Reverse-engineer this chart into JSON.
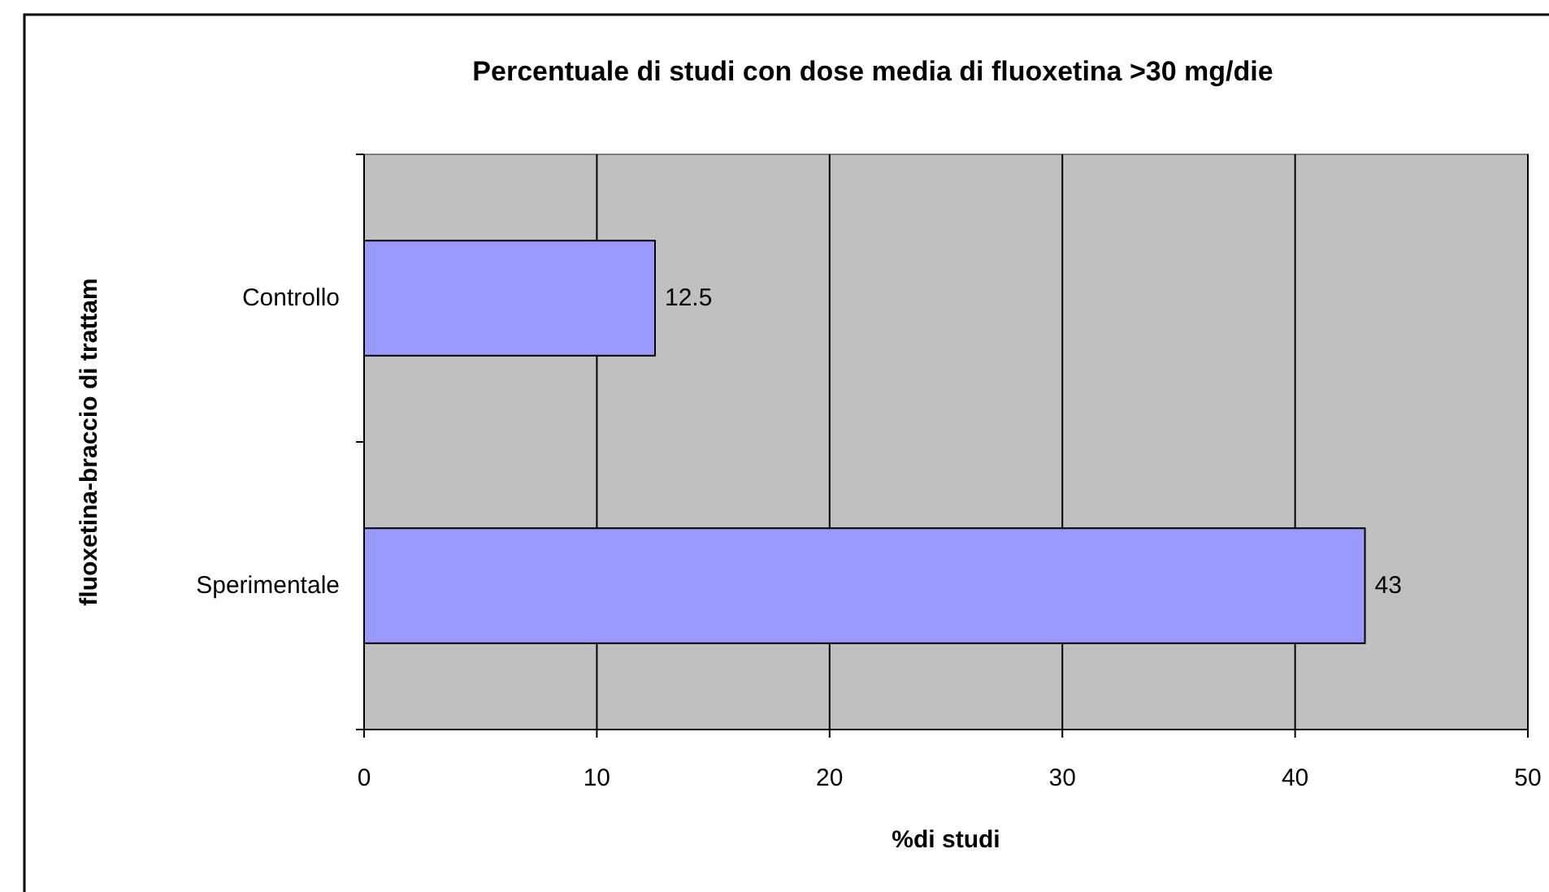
{
  "chart_data": {
    "type": "bar",
    "orientation": "horizontal",
    "title": "Percentuale di studi con dose media di fluoxetina >30 mg/die",
    "xlabel": "%di studi",
    "ylabel": "fluoxetina-braccio di trattam",
    "categories": [
      "Controllo",
      "Sperimentale"
    ],
    "values": [
      12.5,
      43
    ],
    "color": "#9999ff",
    "data_labels": true,
    "xlim": [
      0,
      50
    ],
    "xticks": [
      0,
      10,
      20,
      30,
      40,
      50
    ],
    "grid": "x"
  }
}
